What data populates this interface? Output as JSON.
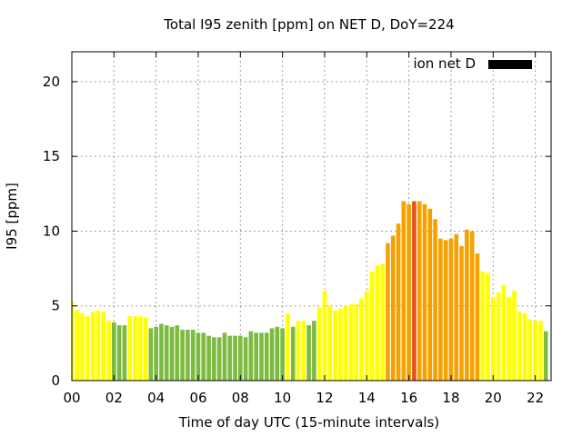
{
  "chart_data": {
    "type": "bar",
    "title": "Total I95 zenith [ppm] on NET D, DoY=224",
    "xlabel": "Time of day UTC (15-minute intervals)",
    "ylabel": "I95 [ppm]",
    "xlim": [
      0,
      22.75
    ],
    "ylim": [
      0,
      22
    ],
    "x_ticks": [
      "00",
      "02",
      "04",
      "06",
      "08",
      "10",
      "12",
      "14",
      "16",
      "18",
      "20",
      "22"
    ],
    "y_ticks": [
      "0",
      "5",
      "10",
      "15",
      "20"
    ],
    "grid": true,
    "legend": {
      "label": "ion net D",
      "color": "#000000",
      "placement": "top-right"
    },
    "interval_hours": 0.25,
    "start_hour": 0.0,
    "values": [
      5.3,
      4.7,
      4.5,
      4.3,
      4.6,
      4.7,
      4.6,
      4.0,
      3.9,
      3.7,
      3.7,
      4.3,
      4.3,
      4.3,
      4.2,
      3.5,
      3.6,
      3.8,
      3.7,
      3.6,
      3.7,
      3.4,
      3.4,
      3.4,
      3.2,
      3.2,
      3.0,
      2.9,
      2.9,
      3.2,
      3.0,
      3.0,
      3.0,
      2.9,
      3.3,
      3.2,
      3.2,
      3.2,
      3.5,
      3.6,
      3.5,
      4.5,
      3.6,
      4.0,
      4.0,
      3.7,
      4.0,
      4.9,
      6.0,
      5.0,
      4.7,
      4.8,
      5.0,
      5.1,
      5.1,
      5.5,
      6.0,
      7.3,
      7.7,
      7.8,
      9.2,
      9.7,
      10.5,
      12.0,
      11.8,
      12.0,
      12.0,
      11.8,
      11.5,
      10.8,
      9.5,
      9.4,
      9.5,
      9.8,
      9.0,
      10.1,
      10.0,
      8.5,
      7.3,
      7.2,
      5.6,
      5.9,
      6.4,
      5.6,
      6.0,
      4.6,
      4.5,
      4.1,
      4.0,
      4.0,
      3.3
    ],
    "bar_colors": [
      "#ffff00",
      "#ffff00",
      "#ffff00",
      "#ffff00",
      "#ffff00",
      "#ffff00",
      "#ffff00",
      "#ffff00",
      "#7cba40",
      "#7cba40",
      "#7cba40",
      "#ffff00",
      "#ffff00",
      "#ffff00",
      "#ffff00",
      "#7cba40",
      "#7cba40",
      "#7cba40",
      "#7cba40",
      "#7cba40",
      "#7cba40",
      "#7cba40",
      "#7cba40",
      "#7cba40",
      "#7cba40",
      "#7cba40",
      "#7cba40",
      "#7cba40",
      "#7cba40",
      "#7cba40",
      "#7cba40",
      "#7cba40",
      "#7cba40",
      "#7cba40",
      "#7cba40",
      "#7cba40",
      "#7cba40",
      "#7cba40",
      "#7cba40",
      "#7cba40",
      "#7cba40",
      "#ffff00",
      "#7cba40",
      "#ffff00",
      "#ffff00",
      "#7cba40",
      "#7cba40",
      "#ffff00",
      "#ffff00",
      "#ffff00",
      "#ffff00",
      "#ffff00",
      "#ffff00",
      "#ffff00",
      "#ffff00",
      "#ffff00",
      "#ffff00",
      "#ffff00",
      "#ffff00",
      "#ffff00",
      "#f5a100",
      "#f5a100",
      "#f5a100",
      "#f5a100",
      "#f5a100",
      "#e8501e",
      "#f5a100",
      "#f5a100",
      "#f5a100",
      "#f5a100",
      "#f5a100",
      "#f5a100",
      "#f5a100",
      "#f5a100",
      "#f5a100",
      "#f5a100",
      "#f5a100",
      "#f5a100",
      "#ffff00",
      "#ffff00",
      "#ffff00",
      "#ffff00",
      "#ffff00",
      "#ffff00",
      "#ffff00",
      "#ffff00",
      "#ffff00",
      "#ffff00",
      "#ffff00",
      "#ffff00",
      "#7cba40"
    ]
  }
}
